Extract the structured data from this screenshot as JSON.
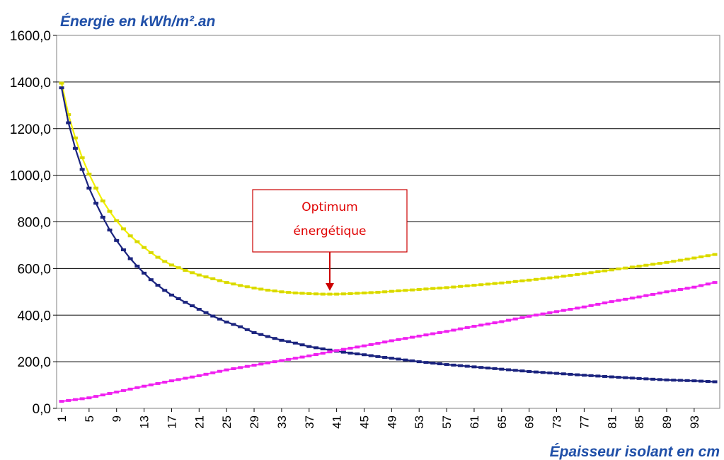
{
  "chart_data": {
    "type": "line",
    "ylabel": "Énergie en kWh/m².an",
    "xlabel": "Épaisseur isolant en cm",
    "ylim": [
      0,
      1600
    ],
    "xlim": [
      1,
      96
    ],
    "y_ticks": [
      "0,0",
      "200,0",
      "400,0",
      "600,0",
      "800,0",
      "1000,0",
      "1200,0",
      "1400,0",
      "1600,0"
    ],
    "x_ticks": [
      "1",
      "5",
      "9",
      "13",
      "17",
      "21",
      "25",
      "29",
      "33",
      "37",
      "41",
      "45",
      "49",
      "53",
      "57",
      "61",
      "65",
      "69",
      "73",
      "77",
      "81",
      "85",
      "89",
      "93"
    ],
    "grid": "horizontal",
    "annotation": {
      "line1": "Optimum",
      "line2": "énergétique",
      "x": 40,
      "y": 490
    },
    "series": [
      {
        "color": "#f2f000",
        "marker": "#d8d800",
        "points": [
          [
            1,
            1395
          ],
          [
            2,
            1260
          ],
          [
            3,
            1160
          ],
          [
            4,
            1075
          ],
          [
            5,
            1005
          ],
          [
            6,
            945
          ],
          [
            7,
            890
          ],
          [
            8,
            845
          ],
          [
            9,
            805
          ],
          [
            10,
            770
          ],
          [
            11,
            740
          ],
          [
            12,
            715
          ],
          [
            13,
            690
          ],
          [
            14,
            668
          ],
          [
            15,
            648
          ],
          [
            16,
            630
          ],
          [
            17,
            615
          ],
          [
            19,
            592
          ],
          [
            21,
            572
          ],
          [
            23,
            556
          ],
          [
            25,
            540
          ],
          [
            27,
            527
          ],
          [
            29,
            516
          ],
          [
            31,
            507
          ],
          [
            33,
            500
          ],
          [
            35,
            495
          ],
          [
            37,
            492
          ],
          [
            39,
            490
          ],
          [
            41,
            490
          ],
          [
            43,
            492
          ],
          [
            45,
            495
          ],
          [
            47,
            498
          ],
          [
            49,
            502
          ],
          [
            53,
            510
          ],
          [
            57,
            518
          ],
          [
            61,
            528
          ],
          [
            65,
            538
          ],
          [
            69,
            550
          ],
          [
            73,
            563
          ],
          [
            77,
            578
          ],
          [
            81,
            594
          ],
          [
            85,
            610
          ],
          [
            89,
            626
          ],
          [
            93,
            645
          ],
          [
            96,
            660
          ]
        ]
      },
      {
        "color": "#1a237e",
        "marker": "#1a237e",
        "points": [
          [
            1,
            1375
          ],
          [
            2,
            1225
          ],
          [
            3,
            1115
          ],
          [
            4,
            1025
          ],
          [
            5,
            945
          ],
          [
            6,
            880
          ],
          [
            7,
            820
          ],
          [
            8,
            765
          ],
          [
            9,
            720
          ],
          [
            10,
            680
          ],
          [
            11,
            642
          ],
          [
            12,
            610
          ],
          [
            13,
            580
          ],
          [
            14,
            552
          ],
          [
            15,
            528
          ],
          [
            16,
            506
          ],
          [
            17,
            486
          ],
          [
            19,
            455
          ],
          [
            21,
            425
          ],
          [
            23,
            396
          ],
          [
            25,
            370
          ],
          [
            27,
            350
          ],
          [
            29,
            325
          ],
          [
            31,
            308
          ],
          [
            33,
            292
          ],
          [
            35,
            280
          ],
          [
            37,
            265
          ],
          [
            39,
            255
          ],
          [
            41,
            245
          ],
          [
            43,
            237
          ],
          [
            45,
            230
          ],
          [
            47,
            222
          ],
          [
            49,
            215
          ],
          [
            53,
            200
          ],
          [
            57,
            188
          ],
          [
            61,
            178
          ],
          [
            65,
            168
          ],
          [
            69,
            158
          ],
          [
            73,
            150
          ],
          [
            77,
            142
          ],
          [
            81,
            135
          ],
          [
            85,
            128
          ],
          [
            89,
            122
          ],
          [
            93,
            118
          ],
          [
            96,
            114
          ]
        ]
      },
      {
        "color": "#ff33ff",
        "marker": "#ee22ee",
        "points": [
          [
            1,
            30
          ],
          [
            5,
            45
          ],
          [
            9,
            70
          ],
          [
            13,
            95
          ],
          [
            17,
            118
          ],
          [
            21,
            140
          ],
          [
            25,
            165
          ],
          [
            29,
            185
          ],
          [
            33,
            205
          ],
          [
            37,
            225
          ],
          [
            41,
            248
          ],
          [
            45,
            268
          ],
          [
            49,
            290
          ],
          [
            53,
            310
          ],
          [
            57,
            330
          ],
          [
            61,
            352
          ],
          [
            65,
            372
          ],
          [
            69,
            395
          ],
          [
            73,
            415
          ],
          [
            77,
            435
          ],
          [
            81,
            458
          ],
          [
            85,
            478
          ],
          [
            89,
            500
          ],
          [
            93,
            520
          ],
          [
            96,
            540
          ]
        ]
      }
    ]
  }
}
